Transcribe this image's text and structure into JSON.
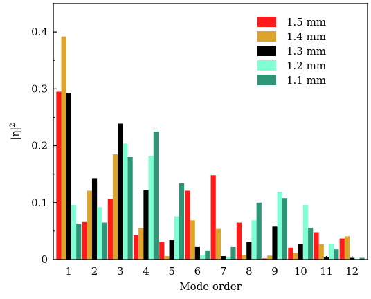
{
  "chart_data": {
    "type": "bar",
    "xlabel": "Mode order",
    "ylabel_base": "|η|",
    "ylabel_sup": "2",
    "ylim": [
      0,
      0.45
    ],
    "yticks": [
      0,
      0.1,
      0.2,
      0.3,
      0.4
    ],
    "ytick_labels": [
      "0",
      "0.1",
      "0.2",
      "0.3",
      "0.4"
    ],
    "categories": [
      "1",
      "2",
      "3",
      "4",
      "5",
      "6",
      "7",
      "8",
      "9",
      "10",
      "11",
      "12"
    ],
    "legend_position": "top-right",
    "series": [
      {
        "name": "1.5 mm",
        "color": "#ff1a1a",
        "values": [
          0.295,
          0.066,
          0.107,
          0.043,
          0.031,
          0.121,
          0.148,
          0.065,
          0.002,
          0.021,
          0.048,
          0.037
        ]
      },
      {
        "name": "1.4 mm",
        "color": "#dca32d",
        "values": [
          0.392,
          0.121,
          0.185,
          0.056,
          0.006,
          0.069,
          0.054,
          0.008,
          0.007,
          0.011,
          0.027,
          0.041
        ]
      },
      {
        "name": "1.3 mm",
        "color": "#000000",
        "values": [
          0.293,
          0.143,
          0.239,
          0.122,
          0.034,
          0.022,
          0.006,
          0.031,
          0.058,
          0.028,
          0.004,
          0.003
        ]
      },
      {
        "name": "1.2 mm",
        "color": "#7fffd4",
        "values": [
          0.096,
          0.092,
          0.204,
          0.182,
          0.076,
          0.008,
          0.004,
          0.069,
          0.119,
          0.096,
          0.028,
          0.001
        ]
      },
      {
        "name": "1.1 mm",
        "color": "#2e9676",
        "values": [
          0.063,
          0.065,
          0.18,
          0.225,
          0.134,
          0.016,
          0.022,
          0.1,
          0.108,
          0.056,
          0.018,
          0.003
        ]
      }
    ]
  }
}
